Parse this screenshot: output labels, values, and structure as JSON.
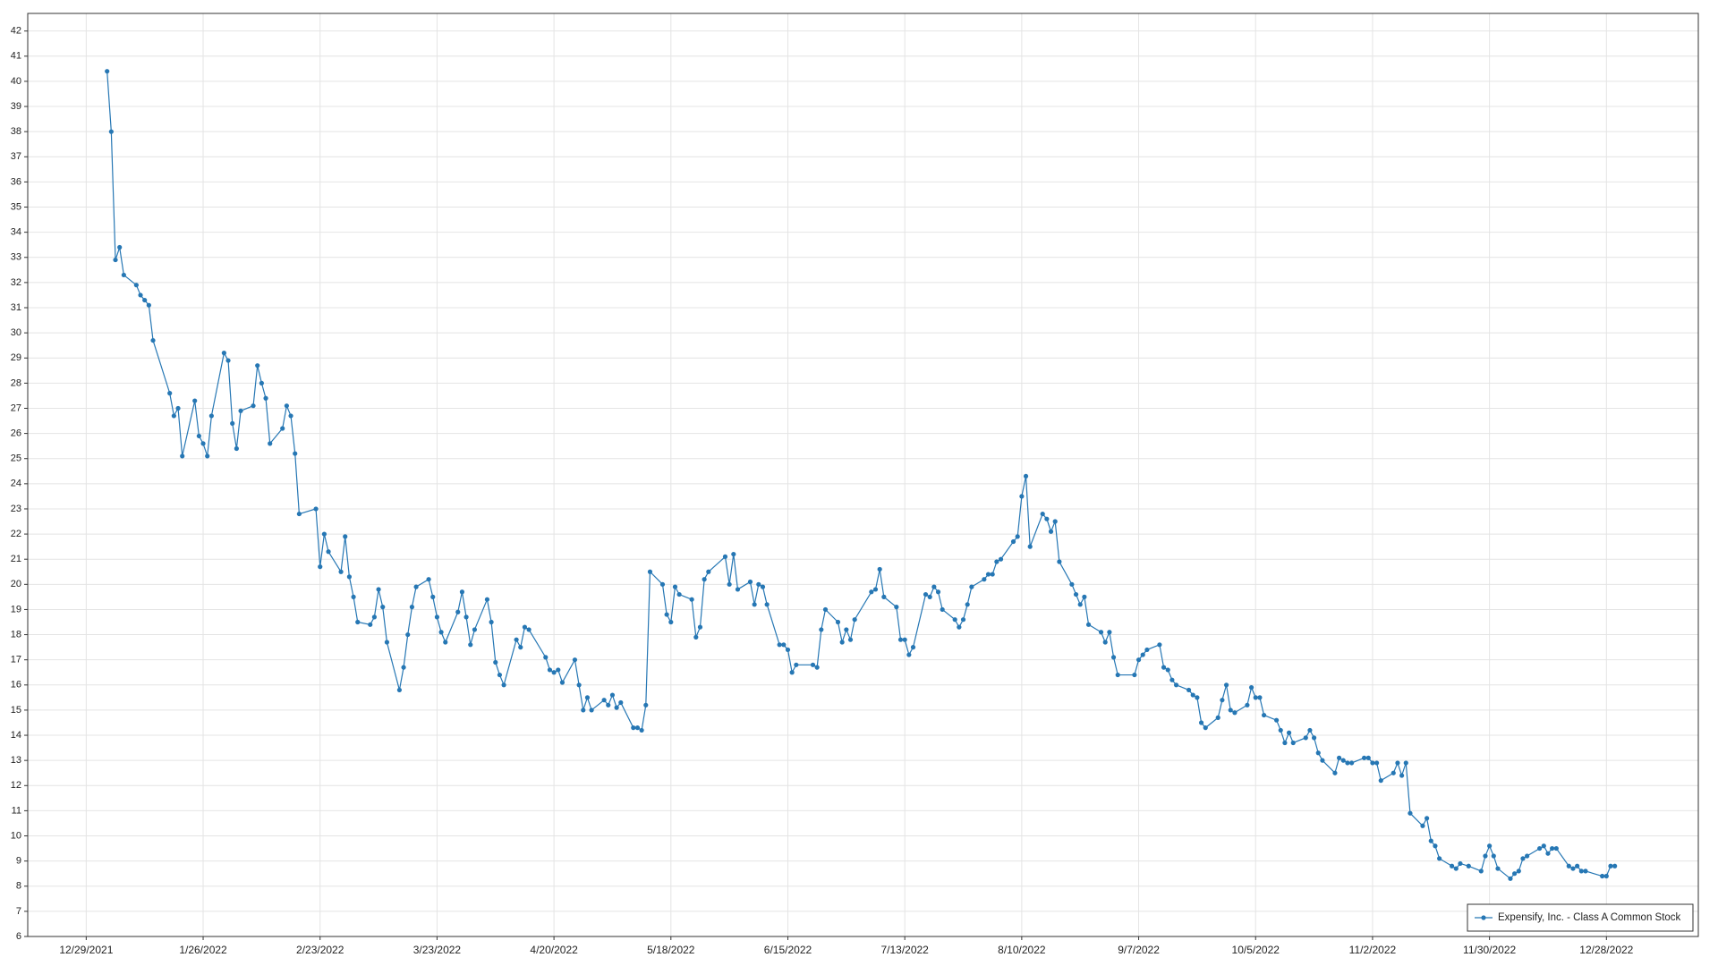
{
  "chart_data": {
    "type": "line",
    "x": [
      "1/3/2022",
      "1/4/2022",
      "1/5/2022",
      "1/6/2022",
      "1/7/2022",
      "1/10/2022",
      "1/11/2022",
      "1/12/2022",
      "1/13/2022",
      "1/14/2022",
      "1/18/2022",
      "1/19/2022",
      "1/20/2022",
      "1/21/2022",
      "1/24/2022",
      "1/25/2022",
      "1/26/2022",
      "1/27/2022",
      "1/28/2022",
      "1/31/2022",
      "2/1/2022",
      "2/2/2022",
      "2/3/2022",
      "2/4/2022",
      "2/7/2022",
      "2/8/2022",
      "2/9/2022",
      "2/10/2022",
      "2/11/2022",
      "2/14/2022",
      "2/15/2022",
      "2/16/2022",
      "2/17/2022",
      "2/18/2022",
      "2/22/2022",
      "2/23/2022",
      "2/24/2022",
      "2/25/2022",
      "2/28/2022",
      "3/1/2022",
      "3/2/2022",
      "3/3/2022",
      "3/4/2022",
      "3/7/2022",
      "3/8/2022",
      "3/9/2022",
      "3/10/2022",
      "3/11/2022",
      "3/14/2022",
      "3/15/2022",
      "3/16/2022",
      "3/17/2022",
      "3/18/2022",
      "3/21/2022",
      "3/22/2022",
      "3/23/2022",
      "3/24/2022",
      "3/25/2022",
      "3/28/2022",
      "3/29/2022",
      "3/30/2022",
      "3/31/2022",
      "4/1/2022",
      "4/4/2022",
      "4/5/2022",
      "4/6/2022",
      "4/7/2022",
      "4/8/2022",
      "4/11/2022",
      "4/12/2022",
      "4/13/2022",
      "4/14/2022",
      "4/18/2022",
      "4/19/2022",
      "4/20/2022",
      "4/21/2022",
      "4/22/2022",
      "4/25/2022",
      "4/26/2022",
      "4/27/2022",
      "4/28/2022",
      "4/29/2022",
      "5/2/2022",
      "5/3/2022",
      "5/4/2022",
      "5/5/2022",
      "5/6/2022",
      "5/9/2022",
      "5/10/2022",
      "5/11/2022",
      "5/12/2022",
      "5/13/2022",
      "5/16/2022",
      "5/17/2022",
      "5/18/2022",
      "5/19/2022",
      "5/20/2022",
      "5/23/2022",
      "5/24/2022",
      "5/25/2022",
      "5/26/2022",
      "5/27/2022",
      "5/31/2022",
      "6/1/2022",
      "6/2/2022",
      "6/3/2022",
      "6/6/2022",
      "6/7/2022",
      "6/8/2022",
      "6/9/2022",
      "6/10/2022",
      "6/13/2022",
      "6/14/2022",
      "6/15/2022",
      "6/16/2022",
      "6/17/2022",
      "6/21/2022",
      "6/22/2022",
      "6/23/2022",
      "6/24/2022",
      "6/27/2022",
      "6/28/2022",
      "6/29/2022",
      "6/30/2022",
      "7/1/2022",
      "7/5/2022",
      "7/6/2022",
      "7/7/2022",
      "7/8/2022",
      "7/11/2022",
      "7/12/2022",
      "7/13/2022",
      "7/14/2022",
      "7/15/2022",
      "7/18/2022",
      "7/19/2022",
      "7/20/2022",
      "7/21/2022",
      "7/22/2022",
      "7/25/2022",
      "7/26/2022",
      "7/27/2022",
      "7/28/2022",
      "7/29/2022",
      "8/1/2022",
      "8/2/2022",
      "8/3/2022",
      "8/4/2022",
      "8/5/2022",
      "8/8/2022",
      "8/9/2022",
      "8/10/2022",
      "8/11/2022",
      "8/12/2022",
      "8/15/2022",
      "8/16/2022",
      "8/17/2022",
      "8/18/2022",
      "8/19/2022",
      "8/22/2022",
      "8/23/2022",
      "8/24/2022",
      "8/25/2022",
      "8/26/2022",
      "8/29/2022",
      "8/30/2022",
      "8/31/2022",
      "9/1/2022",
      "9/2/2022",
      "9/6/2022",
      "9/7/2022",
      "9/8/2022",
      "9/9/2022",
      "9/12/2022",
      "9/13/2022",
      "9/14/2022",
      "9/15/2022",
      "9/16/2022",
      "9/19/2022",
      "9/20/2022",
      "9/21/2022",
      "9/22/2022",
      "9/23/2022",
      "9/26/2022",
      "9/27/2022",
      "9/28/2022",
      "9/29/2022",
      "9/30/2022",
      "10/3/2022",
      "10/4/2022",
      "10/5/2022",
      "10/6/2022",
      "10/7/2022",
      "10/10/2022",
      "10/11/2022",
      "10/12/2022",
      "10/13/2022",
      "10/14/2022",
      "10/17/2022",
      "10/18/2022",
      "10/19/2022",
      "10/20/2022",
      "10/21/2022",
      "10/24/2022",
      "10/25/2022",
      "10/26/2022",
      "10/27/2022",
      "10/28/2022",
      "10/31/2022",
      "11/1/2022",
      "11/2/2022",
      "11/3/2022",
      "11/4/2022",
      "11/7/2022",
      "11/8/2022",
      "11/9/2022",
      "11/10/2022",
      "11/11/2022",
      "11/14/2022",
      "11/15/2022",
      "11/16/2022",
      "11/17/2022",
      "11/18/2022",
      "11/21/2022",
      "11/22/2022",
      "11/23/2022",
      "11/25/2022",
      "11/28/2022",
      "11/29/2022",
      "11/30/2022",
      "12/1/2022",
      "12/2/2022",
      "12/5/2022",
      "12/6/2022",
      "12/7/2022",
      "12/8/2022",
      "12/9/2022",
      "12/12/2022",
      "12/13/2022",
      "12/14/2022",
      "12/15/2022",
      "12/16/2022",
      "12/19/2022",
      "12/20/2022",
      "12/21/2022",
      "12/22/2022",
      "12/23/2022",
      "12/27/2022",
      "12/28/2022",
      "12/29/2022",
      "12/30/2022"
    ],
    "series": [
      {
        "name": "Expensify, Inc. - Class A Common Stock",
        "color": "#2677b4",
        "values": [
          40.4,
          38.0,
          32.9,
          33.4,
          32.3,
          31.9,
          31.5,
          31.3,
          31.1,
          29.7,
          27.6,
          26.7,
          27.0,
          25.1,
          27.3,
          25.9,
          25.6,
          25.1,
          26.7,
          29.2,
          28.9,
          26.4,
          25.4,
          26.9,
          27.1,
          28.7,
          28.0,
          27.4,
          25.6,
          26.2,
          27.1,
          26.7,
          25.2,
          22.8,
          23.0,
          20.7,
          22.0,
          21.3,
          20.5,
          21.9,
          20.3,
          19.5,
          18.5,
          18.4,
          18.7,
          19.8,
          19.1,
          17.7,
          15.8,
          16.7,
          18.0,
          19.1,
          19.9,
          20.2,
          19.5,
          18.7,
          18.1,
          17.7,
          18.9,
          19.7,
          18.7,
          17.6,
          18.2,
          19.4,
          18.5,
          16.9,
          16.4,
          16.0,
          17.8,
          17.5,
          18.3,
          18.2,
          17.1,
          16.6,
          16.5,
          16.6,
          16.1,
          17.0,
          16.0,
          15.0,
          15.5,
          15.0,
          15.4,
          15.2,
          15.6,
          15.1,
          15.3,
          14.3,
          14.3,
          14.2,
          15.2,
          20.5,
          20.0,
          18.8,
          18.5,
          19.9,
          19.6,
          19.4,
          17.9,
          18.3,
          20.2,
          20.5,
          21.1,
          20.0,
          21.2,
          19.8,
          20.1,
          19.2,
          20.0,
          19.9,
          19.2,
          17.6,
          17.6,
          17.4,
          16.5,
          16.8,
          16.8,
          16.7,
          18.2,
          19.0,
          18.5,
          17.7,
          18.2,
          17.8,
          18.6,
          19.7,
          19.8,
          20.6,
          19.5,
          19.1,
          17.8,
          17.8,
          17.2,
          17.5,
          19.6,
          19.5,
          19.9,
          19.7,
          19.0,
          18.6,
          18.3,
          18.6,
          19.2,
          19.9,
          20.2,
          20.4,
          20.4,
          20.9,
          21.0,
          21.7,
          21.9,
          23.5,
          24.3,
          21.5,
          22.8,
          22.6,
          22.1,
          22.5,
          20.9,
          20.0,
          19.6,
          19.2,
          19.5,
          18.4,
          18.1,
          17.7,
          18.1,
          17.1,
          16.4,
          16.4,
          17.0,
          17.2,
          17.4,
          17.6,
          16.7,
          16.6,
          16.2,
          16.0,
          15.8,
          15.6,
          15.5,
          14.5,
          14.3,
          14.7,
          15.4,
          16.0,
          15.0,
          14.9,
          15.2,
          15.9,
          15.5,
          15.5,
          14.8,
          14.6,
          14.2,
          13.7,
          14.1,
          13.7,
          13.9,
          14.2,
          13.9,
          13.3,
          13.0,
          12.5,
          13.1,
          13.0,
          12.9,
          12.9,
          13.1,
          13.1,
          12.9,
          12.9,
          12.2,
          12.5,
          12.9,
          12.4,
          12.9,
          10.9,
          10.4,
          10.7,
          9.8,
          9.6,
          9.1,
          8.8,
          8.7,
          8.9,
          8.8,
          8.6,
          9.2,
          9.6,
          9.2,
          8.7,
          8.3,
          8.5,
          8.6,
          9.1,
          9.2,
          9.5,
          9.6,
          9.3,
          9.5,
          9.5,
          8.8,
          8.7,
          8.8,
          8.6,
          8.6,
          8.4,
          8.4,
          8.8,
          8.8
        ]
      }
    ],
    "xlim": [
      "12/15/2021",
      "1/19/2023"
    ],
    "xticks": [
      "12/29/2021",
      "1/26/2022",
      "2/23/2022",
      "3/23/2022",
      "4/20/2022",
      "5/18/2022",
      "6/15/2022",
      "7/13/2022",
      "8/10/2022",
      "9/7/2022",
      "10/5/2022",
      "11/2/2022",
      "11/30/2022",
      "12/28/2022"
    ],
    "ylim": [
      6,
      42.7
    ],
    "yticks": [
      6,
      7,
      8,
      9,
      10,
      11,
      12,
      13,
      14,
      15,
      16,
      17,
      18,
      19,
      20,
      21,
      22,
      23,
      24,
      25,
      26,
      27,
      28,
      29,
      30,
      31,
      32,
      33,
      34,
      35,
      36,
      37,
      38,
      39,
      40,
      41,
      42
    ],
    "grid": true,
    "legend": "lower right"
  }
}
